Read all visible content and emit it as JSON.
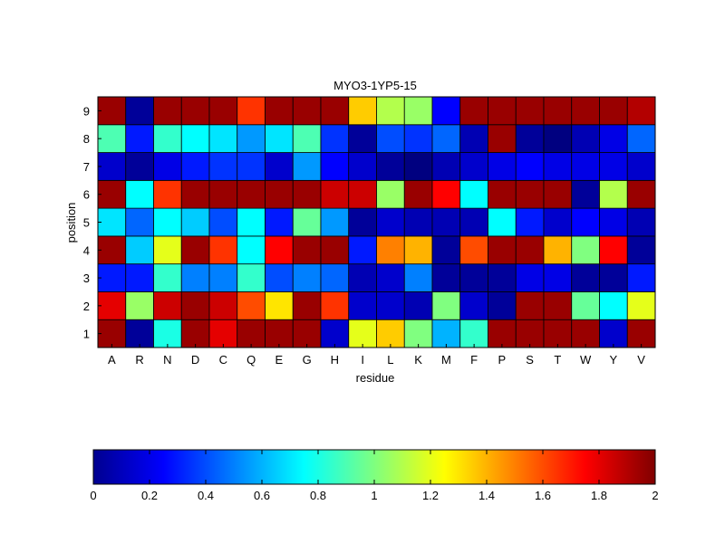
{
  "chart_data": {
    "type": "heatmap",
    "title": "MYO3-1YP5-15",
    "xlabel": "residue",
    "ylabel": "position",
    "x_categories": [
      "A",
      "R",
      "N",
      "D",
      "C",
      "Q",
      "E",
      "G",
      "H",
      "I",
      "L",
      "K",
      "M",
      "F",
      "P",
      "S",
      "T",
      "W",
      "Y",
      "V"
    ],
    "y_categories": [
      "1",
      "2",
      "3",
      "4",
      "5",
      "6",
      "7",
      "8",
      "9"
    ],
    "colormap": "jet",
    "clim": [
      0,
      2
    ],
    "colorbar": {
      "orientation": "horizontal",
      "placement": "bottom",
      "ticks": [
        0,
        0.2,
        0.4,
        0.6,
        0.8,
        1,
        1.2,
        1.4,
        1.6,
        1.8,
        2
      ],
      "tick_labels": [
        "0",
        "0.2",
        "0.4",
        "0.6",
        "0.8",
        "1",
        "1.2",
        "1.4",
        "1.6",
        "1.8",
        "2"
      ]
    },
    "values": [
      [
        1.95,
        0.05,
        0.8,
        1.95,
        1.8,
        1.95,
        1.95,
        1.95,
        0.15,
        1.2,
        1.35,
        1.0,
        0.6,
        0.85,
        1.95,
        1.95,
        1.95,
        1.95,
        0.15,
        1.95
      ],
      [
        1.8,
        1.05,
        1.85,
        1.95,
        1.85,
        1.6,
        1.3,
        1.95,
        1.65,
        0.15,
        0.15,
        0.1,
        1.0,
        0.15,
        0.05,
        1.95,
        1.95,
        0.95,
        0.75,
        1.2
      ],
      [
        0.3,
        0.3,
        0.85,
        0.5,
        0.5,
        0.85,
        0.4,
        0.5,
        0.45,
        0.1,
        0.15,
        0.5,
        0.05,
        0.05,
        0.05,
        0.2,
        0.2,
        0.05,
        0.05,
        0.3
      ],
      [
        1.95,
        0.65,
        1.2,
        1.95,
        1.65,
        0.75,
        1.75,
        1.95,
        1.95,
        0.3,
        1.5,
        1.4,
        0.05,
        1.6,
        1.95,
        1.95,
        1.4,
        1.0,
        1.75,
        0.05
      ],
      [
        0.7,
        0.45,
        0.75,
        0.65,
        0.4,
        0.75,
        0.3,
        0.95,
        0.55,
        0.05,
        0.15,
        0.1,
        0.1,
        0.1,
        0.75,
        0.3,
        0.15,
        0.25,
        0.2,
        0.1
      ],
      [
        1.95,
        0.75,
        1.65,
        1.95,
        1.95,
        1.95,
        1.95,
        1.95,
        1.85,
        1.85,
        1.05,
        1.95,
        1.75,
        0.75,
        1.95,
        1.95,
        1.95,
        0.05,
        1.1,
        1.95
      ],
      [
        0.15,
        0.05,
        0.2,
        0.3,
        0.35,
        0.35,
        0.15,
        0.55,
        0.25,
        0.15,
        0.05,
        0.0,
        0.1,
        0.15,
        0.2,
        0.25,
        0.2,
        0.2,
        0.2,
        0.15
      ],
      [
        0.9,
        0.3,
        0.85,
        0.75,
        0.7,
        0.55,
        0.7,
        0.9,
        0.35,
        0.05,
        0.4,
        0.35,
        0.45,
        0.1,
        1.95,
        0.05,
        0.0,
        0.1,
        0.2,
        0.45
      ],
      [
        1.95,
        0.05,
        1.95,
        1.95,
        1.95,
        1.65,
        1.95,
        1.95,
        1.95,
        1.35,
        1.1,
        1.05,
        0.25,
        1.95,
        1.95,
        1.95,
        1.95,
        1.95,
        1.95,
        1.9
      ]
    ]
  }
}
